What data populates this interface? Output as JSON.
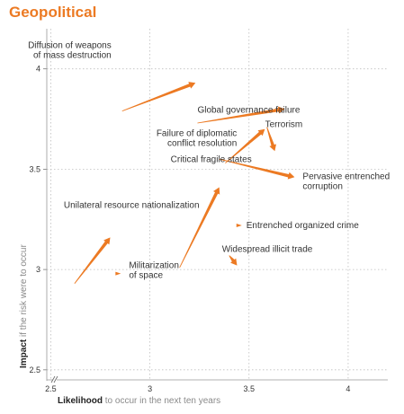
{
  "title": "Geopolitical",
  "colors": {
    "accent": "#ec7a23",
    "grid": "#bdbdbd",
    "text": "#333333",
    "label_muted": "#8a8a8a"
  },
  "axes": {
    "x_label_bold": "Likelihood",
    "x_label_rest": " to occur in the next ten years",
    "y_label_bold": "Impact",
    "y_label_rest": " if the risk were to occur"
  },
  "chart_data": {
    "type": "scatter",
    "title": "Geopolitical",
    "xlabel": "Likelihood to occur in the next ten years",
    "ylabel": "Impact if the risk were to occur",
    "xlim": [
      2.48,
      4.2
    ],
    "ylim": [
      2.45,
      4.2
    ],
    "x_ticks": [
      2.5,
      3,
      3.5,
      4
    ],
    "y_ticks": [
      2.5,
      3,
      3.5,
      4
    ],
    "x_tick_labels": [
      "2.5",
      "3",
      "3.5",
      "4"
    ],
    "y_tick_labels": [
      "2.5",
      "3",
      "3.5",
      "4"
    ],
    "grid": true,
    "axis_break": true,
    "series": [
      {
        "label_lines": [
          "Diffusion of weapons",
          "of mass destruction"
        ],
        "from": [
          2.86,
          3.79
        ],
        "to": [
          3.23,
          3.93
        ]
      },
      {
        "label_lines": [
          "Global governance failure"
        ],
        "from": [
          3.24,
          3.73
        ],
        "to": [
          3.68,
          3.8
        ]
      },
      {
        "label_lines": [
          "Failure of diplomatic",
          "conflict resolution"
        ],
        "from": [
          3.38,
          3.53
        ],
        "to": [
          3.58,
          3.7
        ]
      },
      {
        "label_lines": [
          "Terrorism"
        ],
        "from": [
          3.59,
          3.71
        ],
        "to": [
          3.63,
          3.59
        ]
      },
      {
        "label_lines": [
          "Critical fragile states"
        ],
        "from": [
          3.15,
          3.01
        ],
        "to": [
          3.35,
          3.41
        ]
      },
      {
        "label_lines": [
          "Pervasive entrenched",
          "corruption"
        ],
        "from": [
          3.35,
          3.55
        ],
        "to": [
          3.73,
          3.46
        ]
      },
      {
        "label_lines": [
          "Unilateral resource nationalization"
        ],
        "from": [
          2.62,
          2.93
        ],
        "to": [
          2.8,
          3.16
        ]
      },
      {
        "label_lines": [
          "Entrenched organized crime"
        ],
        "from": [
          3.45,
          3.22
        ],
        "to": [
          3.45,
          3.22
        ]
      },
      {
        "label_lines": [
          "Militarization",
          "of space"
        ],
        "from": [
          2.84,
          2.98
        ],
        "to": [
          2.84,
          2.98
        ]
      },
      {
        "label_lines": [
          "Widespread illicit trade"
        ],
        "from": [
          3.4,
          3.07
        ],
        "to": [
          3.44,
          3.02
        ]
      }
    ]
  }
}
